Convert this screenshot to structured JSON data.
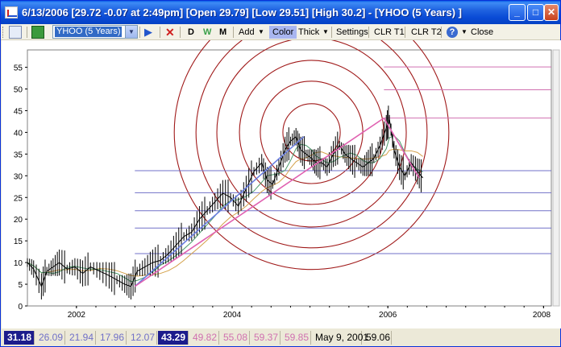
{
  "window": {
    "title": "6/13/2006 [29.72 -0.07 at 2:49pm] [Open 29.79] [Low 29.51] [High 30.2] - [YHOO (5 Years) ]",
    "buttons": {
      "minimize": "_",
      "maximize": "□",
      "close": "✕"
    }
  },
  "toolbar": {
    "symbol": "YHOO (5 Years)",
    "play": "▶",
    "delete": "✕",
    "d_label": "D",
    "w_label": "W",
    "m_label": "M",
    "add_label": "Add",
    "color_label": "Color",
    "thick_label": "Thick",
    "settings_label": "Settings",
    "clr_t1_label": "CLR T1",
    "clr_t2_label": "CLR T2",
    "help_label": "?",
    "close_label": "Close",
    "accent": "#a9b6f0"
  },
  "chart_data": {
    "type": "line",
    "title": "",
    "y_ticks": [
      "0",
      "5",
      "10",
      "15",
      "20",
      "25",
      "30",
      "35",
      "40",
      "45",
      "50",
      "55"
    ],
    "x_ticks": [
      "2002",
      "2004",
      "2006",
      "2008"
    ],
    "ylim": [
      0,
      59
    ],
    "xlim": [
      2001.37,
      2008.1
    ],
    "series": [
      {
        "role": "price",
        "color": "#000000",
        "x": [
          2001.37,
          2001.45,
          2001.55,
          2001.62,
          2001.7,
          2001.78,
          2001.88,
          2001.98,
          2002.08,
          2002.18,
          2002.3,
          2002.42,
          2002.52,
          2002.62,
          2002.7,
          2002.78,
          2002.88,
          2002.98,
          2003.08,
          2003.18,
          2003.28,
          2003.38,
          2003.48,
          2003.58,
          2003.68,
          2003.78,
          2003.88,
          2003.98,
          2004.08,
          2004.18,
          2004.28,
          2004.38,
          2004.45,
          2004.52,
          2004.6,
          2004.68,
          2004.75,
          2004.82,
          2004.88,
          2004.95,
          2005.02,
          2005.08,
          2005.15,
          2005.22,
          2005.3,
          2005.38,
          2005.45,
          2005.52,
          2005.6,
          2005.68,
          2005.75,
          2005.82,
          2005.9,
          2005.98,
          2006.02,
          2006.08,
          2006.15,
          2006.22,
          2006.3,
          2006.38,
          2006.45
        ],
        "y": [
          10,
          8.5,
          4.5,
          8,
          9,
          10,
          8.5,
          9,
          7.5,
          9,
          8,
          7,
          6,
          5,
          4.5,
          8,
          9,
          10,
          10.5,
          12,
          14,
          16,
          17,
          20,
          22,
          24,
          26,
          25,
          23,
          27,
          31,
          33,
          29,
          28,
          32,
          36,
          38,
          39,
          36,
          35,
          34,
          33,
          33,
          32,
          35,
          37,
          35,
          34,
          33,
          32,
          33,
          34,
          37,
          41,
          43,
          36,
          32,
          30,
          33,
          31,
          29.5
        ]
      }
    ],
    "trendlines": [
      {
        "color": "#6a7ee0",
        "x": [
          2002.75,
          2004.92
        ],
        "y": [
          4.5,
          39
        ]
      },
      {
        "color": "#e060b0",
        "x": [
          2002.75,
          2005.95
        ],
        "y": [
          4.5,
          43.3
        ]
      },
      {
        "color": "#e060b0",
        "x": [
          2005.95,
          2006.4
        ],
        "y": [
          43.3,
          29.5
        ]
      }
    ],
    "moving_average_colors": [
      "#d4a14a",
      "#4a9a6a"
    ],
    "h_levels": {
      "blue": [
        31.18,
        26.09,
        21.94,
        17.96,
        12.07
      ],
      "blue_color": "#7070c8",
      "pink": [
        43.29,
        49.82,
        55.08
      ],
      "pink_color": "#d070b0"
    },
    "circles": {
      "color": "#a01a1a",
      "center": [
        2005.02,
        40
      ],
      "radii_units": [
        6.6,
        11.8,
        16.6,
        21.8,
        26.6,
        31.6
      ]
    }
  },
  "status": {
    "cells": [
      {
        "text": "31.18",
        "color": "#ffffff",
        "bg": "#1c1c8c"
      },
      {
        "text": "26.09",
        "color": "#7070c8",
        "bg": ""
      },
      {
        "text": "21.94",
        "color": "#7070c8",
        "bg": ""
      },
      {
        "text": "17.96",
        "color": "#7070c8",
        "bg": ""
      },
      {
        "text": "12.07",
        "color": "#7070c8",
        "bg": ""
      },
      {
        "text": "43.29",
        "color": "#ffffff",
        "bg": "#1c1c8c"
      },
      {
        "text": "49.82",
        "color": "#d070b0",
        "bg": ""
      },
      {
        "text": "55.08",
        "color": "#d070b0",
        "bg": ""
      },
      {
        "text": "59.37",
        "color": "#d070b0",
        "bg": ""
      },
      {
        "text": "59.85",
        "color": "#d070b0",
        "bg": ""
      },
      {
        "text": "May 9, 2001",
        "color": "#000000",
        "bg": ""
      },
      {
        "text": "59.06",
        "color": "#000000",
        "bg": ""
      }
    ]
  }
}
